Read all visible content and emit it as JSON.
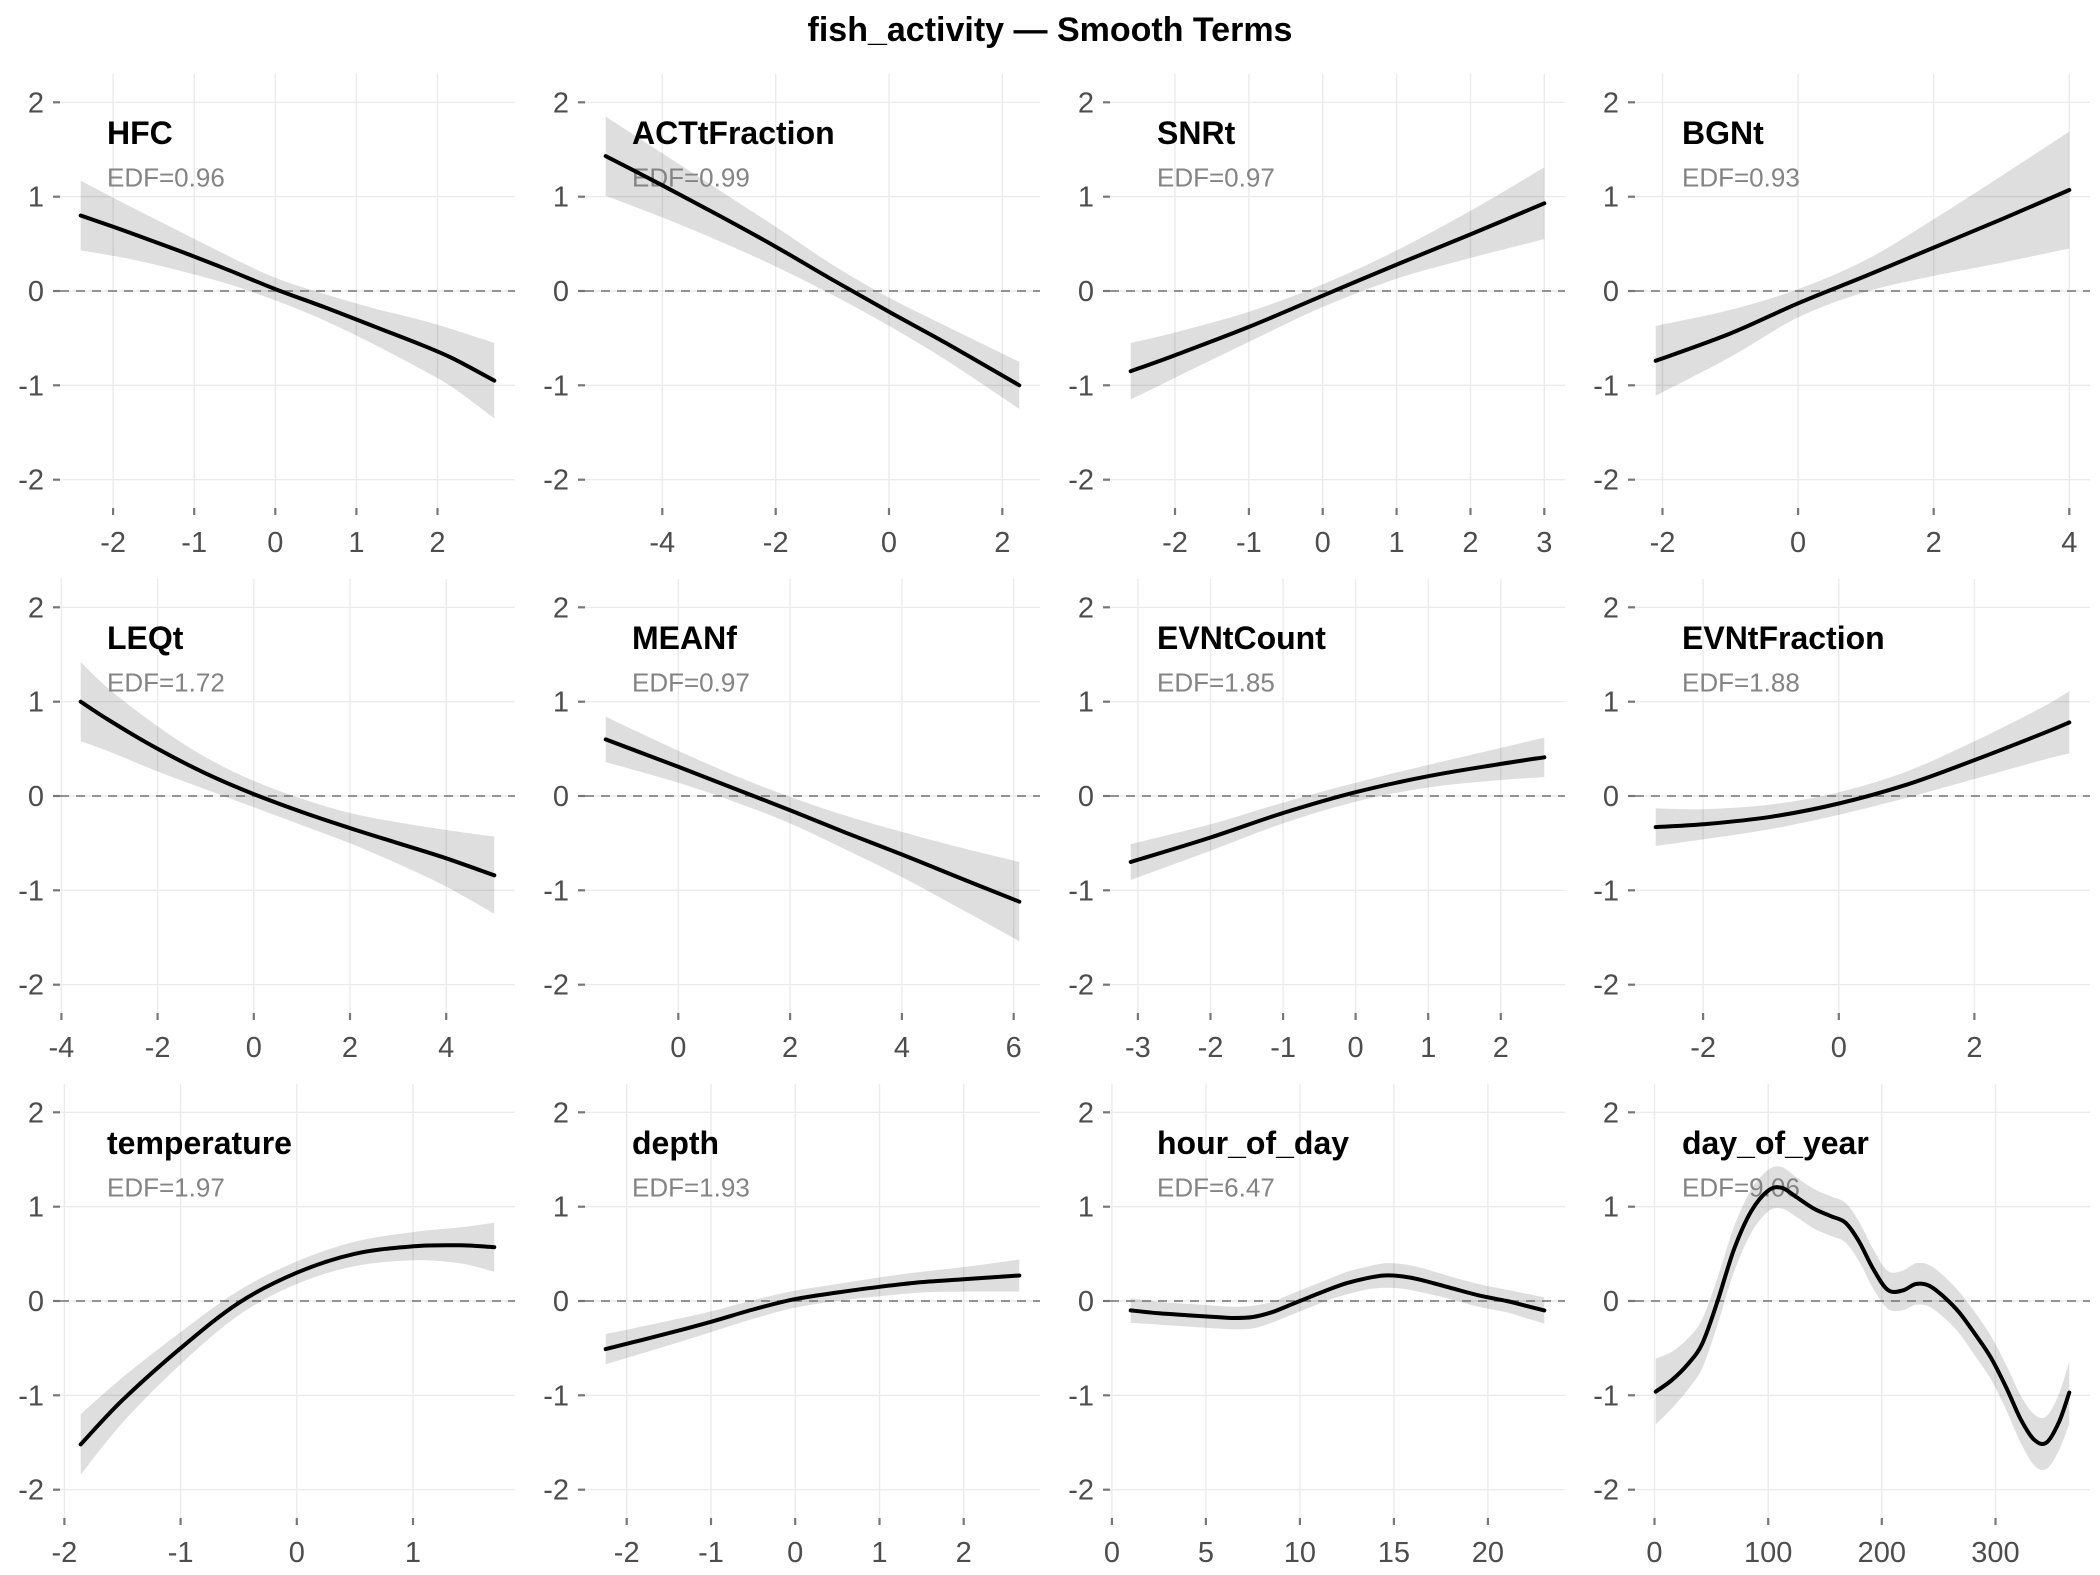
{
  "header": {
    "title": "fish_activity — Smooth Terms"
  },
  "style": {
    "background": "#FFFFFF",
    "curve_color": "#000000",
    "band_color": "rgba(0,0,0,0.13)",
    "grid_color": "#EBEBEB",
    "zero_line_color": "#737373",
    "tick_mark_color": "#777777",
    "tick_label_color": "#4D4D4D",
    "panel_title_color": "#000000",
    "edf_color": "#848484"
  },
  "axis": {
    "y_ticks": [
      -2,
      -1,
      0,
      1,
      2
    ],
    "y_domain": [
      -2.3,
      2.3
    ],
    "x_expand": 0.05,
    "zero_reference_line": 0
  },
  "chart_data": [
    {
      "type": "line",
      "title": "HFC",
      "edf_label": "EDF=0.96",
      "x_ticks": [
        -2,
        -1,
        0,
        1,
        2
      ],
      "x": [
        -2.4,
        -1.8,
        -1.2,
        -0.6,
        0.0,
        0.6,
        1.2,
        1.8,
        2.2,
        2.7
      ],
      "fit": [
        0.8,
        0.62,
        0.43,
        0.23,
        0.02,
        -0.17,
        -0.37,
        -0.57,
        -0.72,
        -0.95
      ],
      "ci_half": [
        0.37,
        0.28,
        0.21,
        0.15,
        0.12,
        0.14,
        0.19,
        0.26,
        0.31,
        0.4
      ]
    },
    {
      "type": "line",
      "title": "ACTtFraction",
      "edf_label": "EDF=0.99",
      "x_ticks": [
        -4,
        -2,
        0,
        2
      ],
      "x": [
        -5.0,
        -4.0,
        -3.0,
        -2.0,
        -1.0,
        0.0,
        1.0,
        2.3
      ],
      "fit": [
        1.43,
        1.12,
        0.8,
        0.47,
        0.12,
        -0.22,
        -0.55,
        -1.0
      ],
      "ci_half": [
        0.42,
        0.34,
        0.27,
        0.21,
        0.16,
        0.15,
        0.18,
        0.25
      ]
    },
    {
      "type": "line",
      "title": "SNRt",
      "edf_label": "EDF=0.97",
      "x_ticks": [
        -2,
        -1,
        0,
        1,
        2,
        3
      ],
      "x": [
        -2.6,
        -2.0,
        -1.0,
        0.0,
        1.0,
        2.0,
        3.0
      ],
      "fit": [
        -0.85,
        -0.68,
        -0.38,
        -0.05,
        0.28,
        0.6,
        0.93
      ],
      "ci_half": [
        0.3,
        0.24,
        0.16,
        0.12,
        0.15,
        0.25,
        0.38
      ]
    },
    {
      "type": "line",
      "title": "BGNt",
      "edf_label": "EDF=0.93",
      "x_ticks": [
        -2,
        0,
        2,
        4
      ],
      "x": [
        -2.1,
        -1.0,
        0.0,
        1.0,
        2.0,
        3.0,
        4.0
      ],
      "fit": [
        -0.74,
        -0.45,
        -0.13,
        0.16,
        0.46,
        0.76,
        1.07
      ],
      "ci_half": [
        0.37,
        0.25,
        0.15,
        0.17,
        0.3,
        0.46,
        0.62
      ]
    },
    {
      "type": "line",
      "title": "LEQt",
      "edf_label": "EDF=1.72",
      "x_ticks": [
        -4,
        -2,
        0,
        2,
        4
      ],
      "x": [
        -3.6,
        -3.0,
        -2.0,
        -1.0,
        0.0,
        1.0,
        2.0,
        3.0,
        4.0,
        5.0
      ],
      "fit": [
        1.0,
        0.8,
        0.5,
        0.24,
        0.02,
        -0.17,
        -0.34,
        -0.5,
        -0.66,
        -0.84
      ],
      "ci_half": [
        0.42,
        0.33,
        0.24,
        0.17,
        0.14,
        0.14,
        0.16,
        0.22,
        0.3,
        0.41
      ]
    },
    {
      "type": "line",
      "title": "MEANf",
      "edf_label": "EDF=0.97",
      "x_ticks": [
        0,
        2,
        4,
        6
      ],
      "x": [
        -1.3,
        0.0,
        1.0,
        2.0,
        3.0,
        4.0,
        5.0,
        6.1
      ],
      "fit": [
        0.6,
        0.31,
        0.08,
        -0.15,
        -0.39,
        -0.62,
        -0.86,
        -1.12
      ],
      "ci_half": [
        0.24,
        0.17,
        0.14,
        0.14,
        0.18,
        0.24,
        0.32,
        0.42
      ]
    },
    {
      "type": "line",
      "title": "EVNtCount",
      "edf_label": "EDF=1.85",
      "x_ticks": [
        -3,
        -2,
        -1,
        0,
        1,
        2
      ],
      "x": [
        -3.1,
        -2.0,
        -1.0,
        0.0,
        1.0,
        2.0,
        2.6
      ],
      "fit": [
        -0.7,
        -0.44,
        -0.18,
        0.04,
        0.21,
        0.34,
        0.41
      ],
      "ci_half": [
        0.19,
        0.14,
        0.11,
        0.1,
        0.12,
        0.17,
        0.21
      ]
    },
    {
      "type": "line",
      "title": "EVNtFraction",
      "edf_label": "EDF=1.88",
      "x_ticks": [
        -2,
        0,
        2
      ],
      "x": [
        -2.7,
        -2.0,
        -1.0,
        0.0,
        1.0,
        2.0,
        3.0,
        3.4
      ],
      "fit": [
        -0.33,
        -0.3,
        -0.22,
        -0.08,
        0.12,
        0.38,
        0.66,
        0.78
      ],
      "ci_half": [
        0.2,
        0.16,
        0.13,
        0.12,
        0.14,
        0.2,
        0.28,
        0.33
      ]
    },
    {
      "type": "line",
      "title": "temperature",
      "edf_label": "EDF=1.97",
      "x_ticks": [
        -2,
        -1,
        0,
        1
      ],
      "x": [
        -1.86,
        -1.5,
        -1.0,
        -0.5,
        0.0,
        0.5,
        1.0,
        1.4,
        1.7
      ],
      "fit": [
        -1.52,
        -1.05,
        -0.5,
        -0.02,
        0.3,
        0.5,
        0.58,
        0.59,
        0.57
      ],
      "ci_half": [
        0.32,
        0.24,
        0.17,
        0.13,
        0.12,
        0.13,
        0.15,
        0.19,
        0.26
      ]
    },
    {
      "type": "line",
      "title": "depth",
      "edf_label": "EDF=1.93",
      "x_ticks": [
        -2,
        -1,
        0,
        1,
        2
      ],
      "x": [
        -2.25,
        -1.5,
        -1.0,
        -0.5,
        0.0,
        0.5,
        1.0,
        1.5,
        2.0,
        2.66
      ],
      "fit": [
        -0.51,
        -0.34,
        -0.22,
        -0.09,
        0.02,
        0.09,
        0.15,
        0.2,
        0.23,
        0.27
      ],
      "ci_half": [
        0.16,
        0.13,
        0.11,
        0.1,
        0.09,
        0.09,
        0.1,
        0.11,
        0.13,
        0.17
      ]
    },
    {
      "type": "line",
      "title": "hour_of_day",
      "edf_label": "EDF=6.47",
      "x_ticks": [
        0,
        5,
        10,
        15,
        20
      ],
      "x": [
        1,
        2.5,
        4,
        5.5,
        6.5,
        7.5,
        8.5,
        9.5,
        10.5,
        11.5,
        12.5,
        13.5,
        14.5,
        15.5,
        16.5,
        18,
        19.5,
        21,
        22,
        23
      ],
      "fit": [
        -0.1,
        -0.13,
        -0.15,
        -0.17,
        -0.18,
        -0.17,
        -0.12,
        -0.04,
        0.04,
        0.12,
        0.19,
        0.24,
        0.27,
        0.26,
        0.22,
        0.14,
        0.06,
        0.0,
        -0.05,
        -0.1
      ],
      "ci_half": [
        0.13,
        0.12,
        0.12,
        0.12,
        0.12,
        0.12,
        0.11,
        0.11,
        0.11,
        0.11,
        0.12,
        0.12,
        0.13,
        0.13,
        0.13,
        0.12,
        0.12,
        0.12,
        0.13,
        0.14
      ]
    },
    {
      "type": "line",
      "title": "day_of_year",
      "edf_label": "EDF=9.06",
      "x_ticks": [
        0,
        100,
        200,
        300
      ],
      "x": [
        1,
        15,
        30,
        42,
        55,
        70,
        85,
        100,
        112,
        125,
        140,
        155,
        168,
        180,
        192,
        205,
        218,
        230,
        242,
        255,
        268,
        282,
        296,
        310,
        322,
        334,
        345,
        356,
        365
      ],
      "fit": [
        -0.96,
        -0.84,
        -0.66,
        -0.45,
        -0.02,
        0.55,
        0.95,
        1.17,
        1.2,
        1.1,
        0.98,
        0.9,
        0.83,
        0.63,
        0.35,
        0.12,
        0.11,
        0.18,
        0.16,
        0.04,
        -0.12,
        -0.35,
        -0.6,
        -0.93,
        -1.25,
        -1.47,
        -1.5,
        -1.28,
        -0.97
      ],
      "ci_half": [
        0.35,
        0.3,
        0.27,
        0.26,
        0.25,
        0.24,
        0.23,
        0.22,
        0.22,
        0.21,
        0.21,
        0.21,
        0.21,
        0.21,
        0.21,
        0.2,
        0.21,
        0.22,
        0.22,
        0.22,
        0.22,
        0.23,
        0.23,
        0.24,
        0.25,
        0.27,
        0.28,
        0.3,
        0.33
      ]
    }
  ]
}
